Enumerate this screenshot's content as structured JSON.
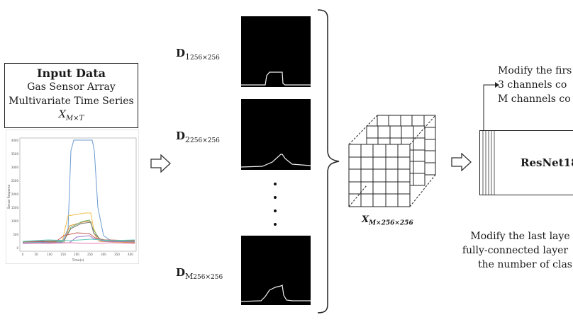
{
  "input": {
    "title": "Input Data",
    "line1": "Gas Sensor Array",
    "line2": "Multivariate Time Series",
    "var_main": "X",
    "var_sub": "M×T"
  },
  "sensor_plot": {
    "y_axis_label": "Sensor Response",
    "x_axis_label": "Time(s)",
    "y_ticks": [
      "4000",
      "3500",
      "3000",
      "2500",
      "2000",
      "1500",
      "1000",
      "500",
      "0"
    ],
    "x_ticks": [
      "0",
      "50",
      "100",
      "150",
      "200",
      "250",
      "300",
      "350",
      "400"
    ]
  },
  "images": [
    {
      "main": "D",
      "index": "1",
      "size": "256×256"
    },
    {
      "main": "D",
      "index": "2",
      "size": "256×256"
    },
    {
      "main": "D",
      "index": "M",
      "size": "256×256"
    }
  ],
  "tensor": {
    "main": "X",
    "sub": "M×256×256"
  },
  "model": {
    "label": "ResNet18"
  },
  "notes": {
    "first_line1": "Modify the firs",
    "first_line2": "3 channels co",
    "first_line3": "M channels co",
    "last_line1": "Modify the last laye",
    "last_line2": "fully-connected layer",
    "last_line3": "the number of clas"
  },
  "colors": {
    "line": "#222222",
    "thumb_bg": "#000000",
    "signal": "#f0f0f0"
  }
}
